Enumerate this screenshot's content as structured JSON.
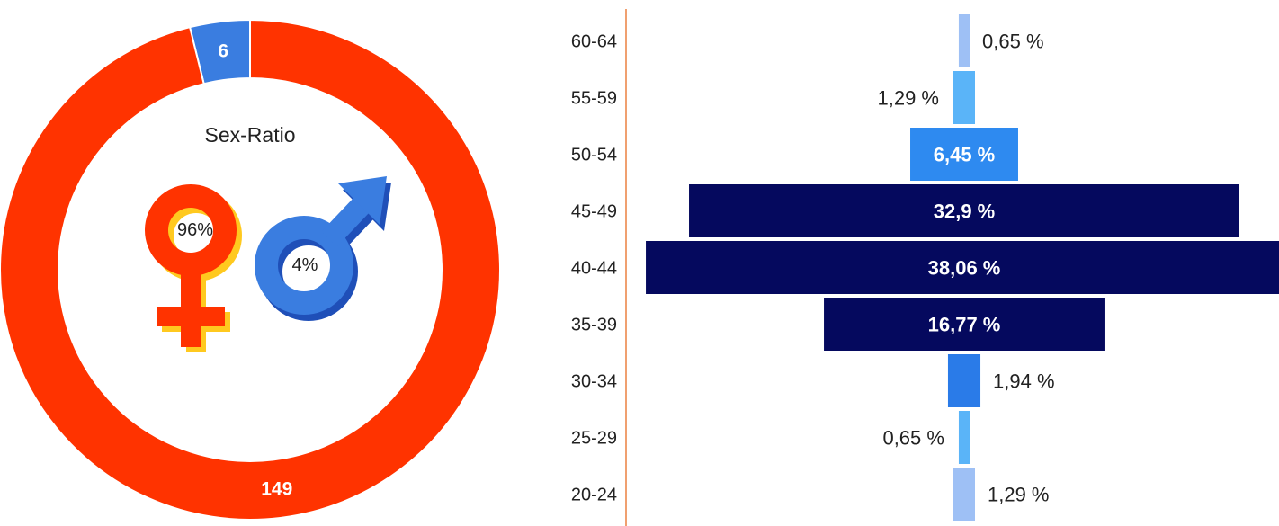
{
  "chart_data": [
    {
      "type": "pie",
      "donut": true,
      "title": "Sex-Ratio",
      "slices": [
        {
          "label": "149",
          "value": 149,
          "percent_label": "96%",
          "color": "#ff3300",
          "symbol": "female-symbol-icon"
        },
        {
          "label": "6",
          "value": 6,
          "percent_label": "4%",
          "color": "#3a7de0",
          "symbol": "male-symbol-icon"
        }
      ]
    },
    {
      "type": "bar",
      "orientation": "horizontal",
      "style": "centered-pyramid",
      "categories": [
        "60-64",
        "55-59",
        "50-54",
        "45-49",
        "40-44",
        "35-39",
        "30-34",
        "25-29",
        "20-24"
      ],
      "values": [
        0.65,
        1.29,
        6.45,
        32.9,
        38.06,
        16.77,
        1.94,
        0.65,
        1.29
      ],
      "labels": [
        "0,65 %",
        "1,29 %",
        "6,45 %",
        "32,9 %",
        "38,06 %",
        "16,77 %",
        "1,94 %",
        "0,65 %",
        "1,29 %"
      ],
      "label_position": [
        "right",
        "left",
        "inside",
        "inside",
        "inside",
        "inside",
        "right",
        "left",
        "right"
      ],
      "colors": [
        "#9ec0f5",
        "#5ab4f8",
        "#2e8af0",
        "#05095e",
        "#05095e",
        "#05095e",
        "#2a7be8",
        "#5ab4f8",
        "#9ec0f5"
      ]
    }
  ]
}
